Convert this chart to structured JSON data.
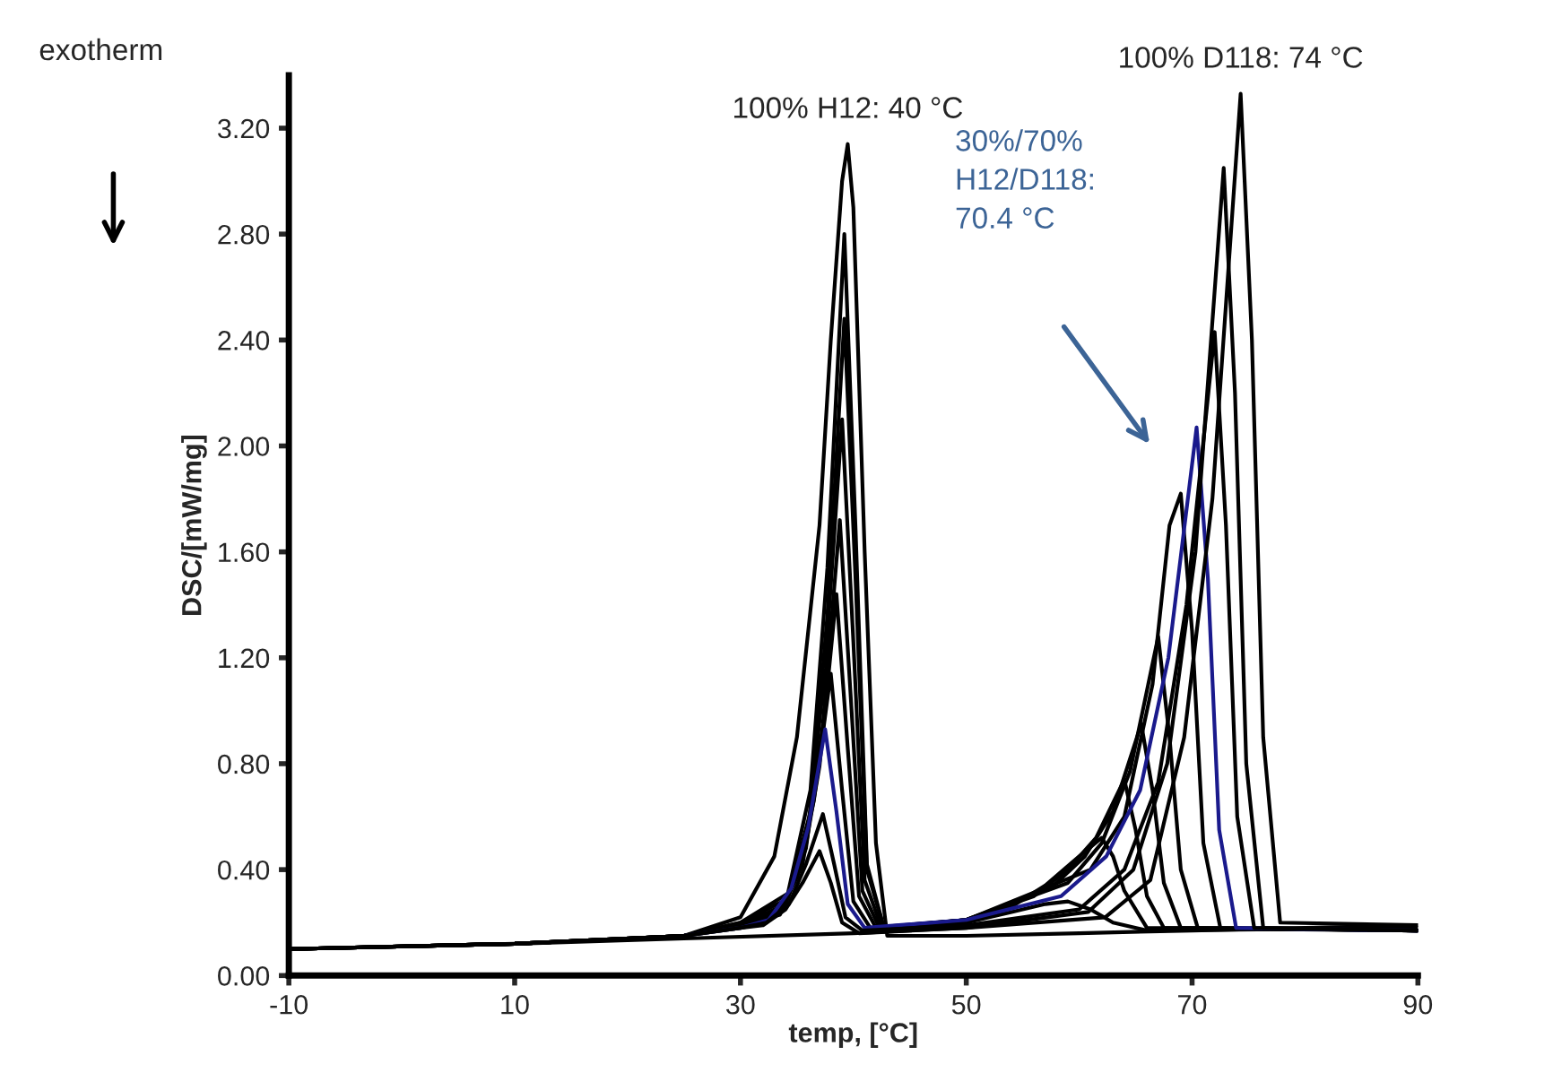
{
  "chart_data": {
    "type": "line",
    "xlabel": "temp, [°C]",
    "ylabel": "DSC/[mW/mg]",
    "xlim": [
      -10,
      90
    ],
    "xticks": [
      -10,
      10,
      30,
      50,
      70,
      90
    ],
    "ylim": [
      0,
      3.4
    ],
    "yticks": [
      {
        "value": 0,
        "label": "0.00"
      },
      {
        "value": 0.4,
        "label": "0.40"
      },
      {
        "value": 0.8,
        "label": "0.80"
      },
      {
        "value": 1.2,
        "label": "1.20"
      },
      {
        "value": 1.6,
        "label": "1.60"
      },
      {
        "value": 2.0,
        "label": "2.00"
      },
      {
        "value": 2.4,
        "label": "2.40"
      },
      {
        "value": 2.8,
        "label": "2.80"
      },
      {
        "value": 3.2,
        "label": "3.20"
      }
    ],
    "grid": false,
    "legend": false,
    "marker": "none",
    "line_style": "solid",
    "annotations": [
      "exotherm",
      {
        "text": "100% H12: 40 °C",
        "x": 39.5,
        "y": 3.14
      },
      {
        "text": "100% D118: 74 °C",
        "x": 74.3,
        "y": 3.33
      },
      "30%/70%\nH12/D118:\n70.4 °C"
    ],
    "series": [
      {
        "color": "#000000",
        "x": [
          -10,
          10,
          25,
          30,
          33,
          35,
          37,
          38,
          39,
          39.5,
          40,
          41,
          42,
          43,
          50,
          60,
          70,
          80,
          90
        ],
        "values": [
          0.1,
          0.12,
          0.15,
          0.22,
          0.45,
          0.9,
          1.7,
          2.4,
          3.0,
          3.14,
          2.9,
          1.6,
          0.5,
          0.15,
          0.15,
          0.16,
          0.17,
          0.18,
          0.19
        ]
      },
      {
        "color": "#000000",
        "x": [
          -10,
          10,
          25,
          30,
          34.2,
          36.2,
          37.7,
          39.2,
          40.2,
          41.2,
          42.7,
          50,
          54,
          57,
          59,
          61,
          63,
          66,
          90
        ],
        "values": [
          0.1,
          0.12,
          0.15,
          0.2,
          0.31,
          0.7,
          1.54,
          2.8,
          1.68,
          0.42,
          0.18,
          0.2,
          0.24,
          0.27,
          0.28,
          0.25,
          0.2,
          0.17,
          0.18
        ]
      },
      {
        "color": "#000000",
        "x": [
          -10,
          10,
          25,
          30,
          34.2,
          36.2,
          37.7,
          39.2,
          40.2,
          41.2,
          42.7,
          50,
          54,
          57,
          60,
          62,
          63,
          64,
          66,
          90
        ],
        "values": [
          0.1,
          0.12,
          0.15,
          0.2,
          0.29,
          0.62,
          1.36,
          2.48,
          1.49,
          0.4,
          0.18,
          0.21,
          0.26,
          0.34,
          0.45,
          0.52,
          0.45,
          0.32,
          0.18,
          0.17
        ]
      },
      {
        "color": "#000000",
        "x": [
          -10,
          10,
          25,
          30,
          34,
          36,
          37.5,
          39,
          40,
          41,
          42.5,
          50,
          56,
          59,
          61.5,
          64,
          65,
          66,
          67.5,
          90
        ],
        "values": [
          0.1,
          0.12,
          0.15,
          0.19,
          0.27,
          0.56,
          1.16,
          2.1,
          1.26,
          0.36,
          0.18,
          0.21,
          0.3,
          0.4,
          0.52,
          0.74,
          0.55,
          0.3,
          0.18,
          0.17
        ]
      },
      {
        "color": "#000000",
        "x": [
          -10,
          10,
          25,
          30,
          33.8,
          35.8,
          37.3,
          38.8,
          39.8,
          40.8,
          42.3,
          50,
          57.5,
          60.5,
          63,
          65.5,
          66.5,
          67.5,
          69,
          90
        ],
        "values": [
          0.1,
          0.12,
          0.15,
          0.19,
          0.25,
          0.48,
          0.95,
          1.72,
          1.03,
          0.32,
          0.18,
          0.21,
          0.33,
          0.45,
          0.62,
          0.95,
          0.7,
          0.35,
          0.18,
          0.17
        ]
      },
      {
        "color": "#000000",
        "x": [
          -10,
          10,
          25,
          30,
          33.5,
          35.5,
          37,
          38.5,
          39.5,
          40.5,
          42,
          50,
          59,
          62,
          64.5,
          67,
          68,
          69,
          70.5,
          90
        ],
        "values": [
          0.1,
          0.12,
          0.15,
          0.19,
          0.23,
          0.42,
          0.79,
          1.44,
          0.86,
          0.3,
          0.18,
          0.21,
          0.35,
          0.5,
          0.77,
          1.28,
          0.9,
          0.4,
          0.18,
          0.17
        ]
      },
      {
        "color": "#000000",
        "x": [
          -10,
          10,
          25,
          30,
          33,
          35,
          36.5,
          38,
          39,
          40,
          41.5,
          50,
          61,
          64,
          66.5,
          68,
          69,
          70,
          71,
          72.5,
          90
        ],
        "values": [
          0.1,
          0.12,
          0.15,
          0.19,
          0.22,
          0.37,
          0.66,
          1.14,
          0.7,
          0.28,
          0.18,
          0.21,
          0.4,
          0.6,
          1.1,
          1.7,
          1.82,
          1.3,
          0.5,
          0.18,
          0.17
        ]
      },
      {
        "color": "#1a1a8c",
        "x": [
          25,
          30,
          32.5,
          34.5,
          36,
          37.5,
          38.5,
          39.5,
          41,
          50,
          58.4,
          62.4,
          65.4,
          67.9,
          70.4,
          71.4,
          72.4,
          73.9,
          90
        ],
        "values": [
          0.15,
          0.18,
          0.21,
          0.33,
          0.56,
          0.93,
          0.62,
          0.27,
          0.18,
          0.21,
          0.3,
          0.45,
          0.7,
          1.2,
          2.07,
          1.5,
          0.55,
          0.18,
          0.17
        ]
      },
      {
        "color": "#000000",
        "x": [
          -10,
          10,
          25,
          30,
          32.3,
          34.3,
          35.8,
          37.3,
          38.3,
          39.3,
          40.8,
          50,
          60,
          64,
          67,
          69.5,
          72,
          73,
          74,
          75.5,
          90
        ],
        "values": [
          0.1,
          0.12,
          0.15,
          0.18,
          0.2,
          0.27,
          0.42,
          0.61,
          0.42,
          0.22,
          0.17,
          0.19,
          0.25,
          0.4,
          0.73,
          1.4,
          2.43,
          1.7,
          0.6,
          0.18,
          0.17
        ]
      },
      {
        "color": "#000000",
        "x": [
          -10,
          10,
          25,
          30,
          32,
          34,
          35.5,
          37,
          38,
          39,
          40.5,
          50,
          60.8,
          64.8,
          67.8,
          70.3,
          72.8,
          73.8,
          74.8,
          76.3,
          90
        ],
        "values": [
          0.1,
          0.12,
          0.15,
          0.18,
          0.19,
          0.25,
          0.35,
          0.47,
          0.35,
          0.2,
          0.16,
          0.18,
          0.24,
          0.4,
          0.8,
          1.6,
          3.05,
          2.2,
          0.8,
          0.18,
          0.17
        ]
      },
      {
        "color": "#000000",
        "x": [
          -10,
          10,
          25,
          40,
          50,
          62.3,
          66.3,
          69.3,
          71.8,
          74.3,
          75.3,
          76.3,
          77.8,
          90
        ],
        "values": [
          0.1,
          0.12,
          0.14,
          0.16,
          0.18,
          0.22,
          0.36,
          0.9,
          1.8,
          3.33,
          2.4,
          0.9,
          0.2,
          0.19
        ]
      }
    ]
  }
}
